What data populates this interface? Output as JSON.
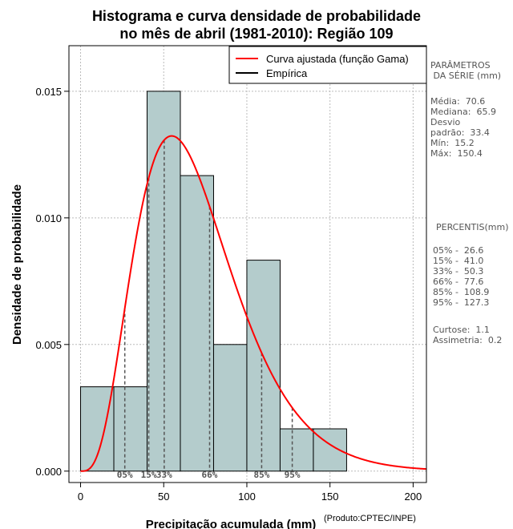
{
  "chart_data": {
    "type": "bar",
    "title_line1": "Histograma e curva densidade de probabilidade",
    "title_line2": "no mês de abril (1981-2010): Região 109",
    "xlabel": "Precipitação acumulada (mm)",
    "ylabel": "Densidade de probabilidade",
    "credit": "(Produto:CPTEC/INPE)",
    "xlim": [
      -7,
      208
    ],
    "ylim": [
      -0.00045,
      0.0168
    ],
    "xticks": [
      0,
      50,
      100,
      150,
      200
    ],
    "yticks": [
      0.0,
      0.005,
      0.01,
      0.015
    ],
    "ytick_labels": [
      "0.000",
      "0.005",
      "0.010",
      "0.015"
    ],
    "grid": true,
    "legend_position": "top-right",
    "legend": [
      {
        "label": "Curva ajustada (função Gama)",
        "color": "#ff0000"
      },
      {
        "label": "Empírica",
        "color": "#000000"
      }
    ],
    "bins": [
      {
        "x0": 0,
        "x1": 20,
        "density": 0.00333
      },
      {
        "x0": 20,
        "x1": 40,
        "density": 0.00333
      },
      {
        "x0": 40,
        "x1": 60,
        "density": 0.015
      },
      {
        "x0": 60,
        "x1": 80,
        "density": 0.01167
      },
      {
        "x0": 80,
        "x1": 100,
        "density": 0.005
      },
      {
        "x0": 100,
        "x1": 120,
        "density": 0.00833
      },
      {
        "x0": 120,
        "x1": 140,
        "density": 0.00167
      },
      {
        "x0": 140,
        "x1": 160,
        "density": 0.00167
      }
    ],
    "bar_color": "#b4cccc",
    "curve_color": "#ff0000",
    "gamma_mean": 70.6,
    "gamma_sd": 33.4,
    "percentile_markers": [
      {
        "label": "05%",
        "x": 26.6
      },
      {
        "label": "15%",
        "x": 41.0
      },
      {
        "label": "33%",
        "x": 50.3
      },
      {
        "label": "66%",
        "x": 77.6
      },
      {
        "label": "85%",
        "x": 108.9
      },
      {
        "label": "95%",
        "x": 127.3
      }
    ]
  },
  "sidebar": {
    "params_title": "PARÂMETROS\n DA SÉRIE (mm)",
    "params": "Média:  70.6\nMediana:  65.9\nDesvio\npadrão:  33.4\nMín:  15.2\nMáx:  150.4",
    "percentis_title": "PERCENTIS(mm)",
    "percentis": "05% -  26.6\n15% -  41.0\n33% -  50.3\n66% -  77.6\n85% -  108.9\n95% -  127.3",
    "stats": "Curtose:  1.1\nAssimetria:  0.2"
  }
}
